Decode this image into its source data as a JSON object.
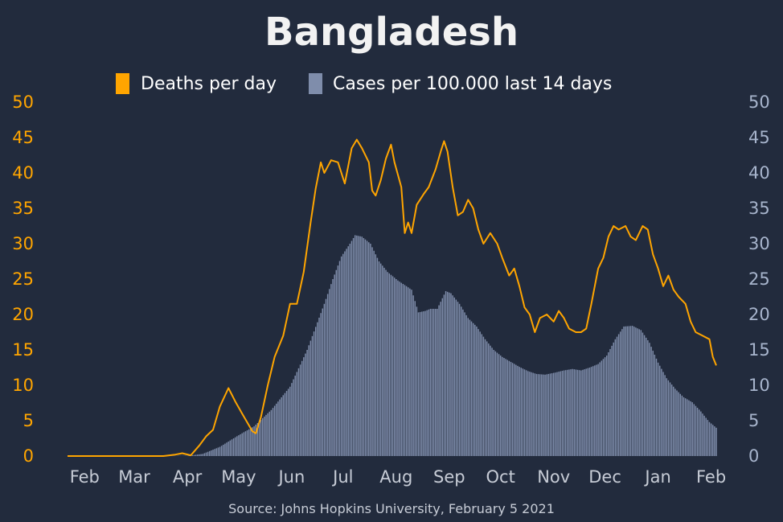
{
  "chart_data": {
    "type": "bar",
    "title": "Bangladesh",
    "source": "Source: Johns Hopkins University, February 5 2021",
    "legend": {
      "placement": "top-center",
      "deaths_label": "Deaths per day",
      "cases_label": "Cases per 100.000 last 14 days"
    },
    "colors": {
      "background": "#222b3d",
      "deaths": "#ffa500",
      "cases": "#7f8dab",
      "left_axis": "#ffa500",
      "right_axis": "#a7b4cc",
      "x_axis": "#c7ccd6",
      "title": "#f2f2f2"
    },
    "x_range": [
      "2020-01-22",
      "2021-02-04"
    ],
    "x_ticks": [
      {
        "label": "Feb",
        "date": "2020-02-01"
      },
      {
        "label": "Mar",
        "date": "2020-03-01"
      },
      {
        "label": "Apr",
        "date": "2020-04-01"
      },
      {
        "label": "May",
        "date": "2020-05-01"
      },
      {
        "label": "Jun",
        "date": "2020-06-01"
      },
      {
        "label": "Jul",
        "date": "2020-07-01"
      },
      {
        "label": "Aug",
        "date": "2020-08-01"
      },
      {
        "label": "Sep",
        "date": "2020-09-01"
      },
      {
        "label": "Oct",
        "date": "2020-10-01"
      },
      {
        "label": "Nov",
        "date": "2020-11-01"
      },
      {
        "label": "Dec",
        "date": "2020-12-01"
      },
      {
        "label": "Jan",
        "date": "2021-01-01"
      },
      {
        "label": "Feb",
        "date": "2021-02-01"
      }
    ],
    "y_left": {
      "ylim": [
        0,
        50
      ],
      "ticks": [
        0,
        5,
        10,
        15,
        20,
        25,
        30,
        35,
        40,
        45,
        50
      ]
    },
    "y_right": {
      "ylim": [
        0,
        50
      ],
      "ticks": [
        0,
        5,
        10,
        15,
        20,
        25,
        30,
        35,
        40,
        45,
        50
      ]
    },
    "series": [
      {
        "name": "Cases per 100.000 last 14 days",
        "kind": "bar",
        "axis": "right",
        "points": [
          [
            "2020-01-22",
            0
          ],
          [
            "2020-03-15",
            0
          ],
          [
            "2020-04-01",
            0.03
          ],
          [
            "2020-04-10",
            0.3
          ],
          [
            "2020-04-20",
            1.3
          ],
          [
            "2020-04-30",
            2.8
          ],
          [
            "2020-05-10",
            4.2
          ],
          [
            "2020-05-20",
            6.5
          ],
          [
            "2020-05-31",
            9.8
          ],
          [
            "2020-06-10",
            15
          ],
          [
            "2020-06-20",
            21.5
          ],
          [
            "2020-06-25",
            25
          ],
          [
            "2020-06-30",
            28.2
          ],
          [
            "2020-07-05",
            30
          ],
          [
            "2020-07-08",
            31.2
          ],
          [
            "2020-07-12",
            31
          ],
          [
            "2020-07-17",
            30
          ],
          [
            "2020-07-22",
            27.5
          ],
          [
            "2020-07-27",
            26
          ],
          [
            "2020-08-02",
            24.8
          ],
          [
            "2020-08-07",
            24
          ],
          [
            "2020-08-10",
            23.5
          ],
          [
            "2020-08-14",
            20.3
          ],
          [
            "2020-08-18",
            20.5
          ],
          [
            "2020-08-21",
            20.8
          ],
          [
            "2020-08-25",
            20.8
          ],
          [
            "2020-08-30",
            23.3
          ],
          [
            "2020-09-02",
            23
          ],
          [
            "2020-09-07",
            21.5
          ],
          [
            "2020-09-12",
            19.5
          ],
          [
            "2020-09-17",
            18.3
          ],
          [
            "2020-09-22",
            16.5
          ],
          [
            "2020-09-27",
            15
          ],
          [
            "2020-10-02",
            14
          ],
          [
            "2020-10-07",
            13.3
          ],
          [
            "2020-10-12",
            12.6
          ],
          [
            "2020-10-17",
            12
          ],
          [
            "2020-10-22",
            11.6
          ],
          [
            "2020-10-27",
            11.5
          ],
          [
            "2020-11-02",
            11.8
          ],
          [
            "2020-11-07",
            12.1
          ],
          [
            "2020-11-12",
            12.3
          ],
          [
            "2020-11-17",
            12.1
          ],
          [
            "2020-11-22",
            12.5
          ],
          [
            "2020-11-27",
            13
          ],
          [
            "2020-12-02",
            14.2
          ],
          [
            "2020-12-07",
            16.5
          ],
          [
            "2020-12-12",
            18.3
          ],
          [
            "2020-12-17",
            18.4
          ],
          [
            "2020-12-22",
            17.8
          ],
          [
            "2020-12-27",
            16
          ],
          [
            "2021-01-01",
            13.2
          ],
          [
            "2021-01-06",
            11
          ],
          [
            "2021-01-11",
            9.5
          ],
          [
            "2021-01-16",
            8.3
          ],
          [
            "2021-01-21",
            7.6
          ],
          [
            "2021-01-26",
            6.3
          ],
          [
            "2021-01-31",
            4.8
          ],
          [
            "2021-02-04",
            4
          ]
        ]
      },
      {
        "name": "Deaths per day",
        "kind": "line",
        "axis": "left",
        "points": [
          [
            "2020-01-22",
            0
          ],
          [
            "2020-03-18",
            0
          ],
          [
            "2020-03-25",
            0.2
          ],
          [
            "2020-03-29",
            0.4
          ],
          [
            "2020-04-03",
            0.1
          ],
          [
            "2020-04-08",
            1.5
          ],
          [
            "2020-04-12",
            2.8
          ],
          [
            "2020-04-16",
            3.7
          ],
          [
            "2020-04-20",
            7
          ],
          [
            "2020-04-25",
            9.6
          ],
          [
            "2020-04-29",
            7.7
          ],
          [
            "2020-05-03",
            6
          ],
          [
            "2020-05-09",
            3.5
          ],
          [
            "2020-05-11",
            3.2
          ],
          [
            "2020-05-14",
            5.5
          ],
          [
            "2020-05-18",
            10
          ],
          [
            "2020-05-22",
            14
          ],
          [
            "2020-05-27",
            17
          ],
          [
            "2020-05-31",
            21.5
          ],
          [
            "2020-06-04",
            21.5
          ],
          [
            "2020-06-08",
            26
          ],
          [
            "2020-06-12",
            33
          ],
          [
            "2020-06-15",
            37.8
          ],
          [
            "2020-06-18",
            41.5
          ],
          [
            "2020-06-20",
            40
          ],
          [
            "2020-06-24",
            41.8
          ],
          [
            "2020-06-28",
            41.5
          ],
          [
            "2020-07-02",
            38.5
          ],
          [
            "2020-07-06",
            43.5
          ],
          [
            "2020-07-09",
            44.7
          ],
          [
            "2020-07-12",
            43.5
          ],
          [
            "2020-07-16",
            41.5
          ],
          [
            "2020-07-18",
            37.5
          ],
          [
            "2020-07-20",
            36.8
          ],
          [
            "2020-07-23",
            39
          ],
          [
            "2020-07-26",
            42
          ],
          [
            "2020-07-29",
            44
          ],
          [
            "2020-07-31",
            41.5
          ],
          [
            "2020-08-04",
            38
          ],
          [
            "2020-08-06",
            31.5
          ],
          [
            "2020-08-08",
            33
          ],
          [
            "2020-08-10",
            31.5
          ],
          [
            "2020-08-13",
            35.5
          ],
          [
            "2020-08-17",
            37
          ],
          [
            "2020-08-20",
            38
          ],
          [
            "2020-08-24",
            40.5
          ],
          [
            "2020-08-27",
            43
          ],
          [
            "2020-08-29",
            44.5
          ],
          [
            "2020-08-31",
            43
          ],
          [
            "2020-09-03",
            38
          ],
          [
            "2020-09-06",
            34
          ],
          [
            "2020-09-09",
            34.5
          ],
          [
            "2020-09-12",
            36.2
          ],
          [
            "2020-09-15",
            35
          ],
          [
            "2020-09-18",
            32
          ],
          [
            "2020-09-21",
            30
          ],
          [
            "2020-09-25",
            31.5
          ],
          [
            "2020-09-29",
            30
          ],
          [
            "2020-10-02",
            28
          ],
          [
            "2020-10-06",
            25.5
          ],
          [
            "2020-10-09",
            26.5
          ],
          [
            "2020-10-12",
            24
          ],
          [
            "2020-10-15",
            21
          ],
          [
            "2020-10-18",
            20
          ],
          [
            "2020-10-21",
            17.5
          ],
          [
            "2020-10-24",
            19.5
          ],
          [
            "2020-10-28",
            20
          ],
          [
            "2020-11-01",
            19
          ],
          [
            "2020-11-04",
            20.5
          ],
          [
            "2020-11-07",
            19.5
          ],
          [
            "2020-11-10",
            18
          ],
          [
            "2020-11-14",
            17.5
          ],
          [
            "2020-11-17",
            17.5
          ],
          [
            "2020-11-20",
            18
          ],
          [
            "2020-11-23",
            21.5
          ],
          [
            "2020-11-27",
            26.5
          ],
          [
            "2020-11-30",
            28
          ],
          [
            "2020-12-03",
            31
          ],
          [
            "2020-12-06",
            32.5
          ],
          [
            "2020-12-09",
            32
          ],
          [
            "2020-12-13",
            32.5
          ],
          [
            "2020-12-16",
            31
          ],
          [
            "2020-12-19",
            30.5
          ],
          [
            "2020-12-23",
            32.5
          ],
          [
            "2020-12-26",
            32
          ],
          [
            "2020-12-29",
            28.5
          ],
          [
            "2021-01-01",
            26.5
          ],
          [
            "2021-01-04",
            24
          ],
          [
            "2021-01-07",
            25.5
          ],
          [
            "2021-01-10",
            23.5
          ],
          [
            "2021-01-13",
            22.5
          ],
          [
            "2021-01-17",
            21.5
          ],
          [
            "2021-01-20",
            19
          ],
          [
            "2021-01-23",
            17.5
          ],
          [
            "2021-01-27",
            17
          ],
          [
            "2021-01-31",
            16.5
          ],
          [
            "2021-02-02",
            14
          ],
          [
            "2021-02-04",
            12.8
          ]
        ]
      }
    ]
  }
}
